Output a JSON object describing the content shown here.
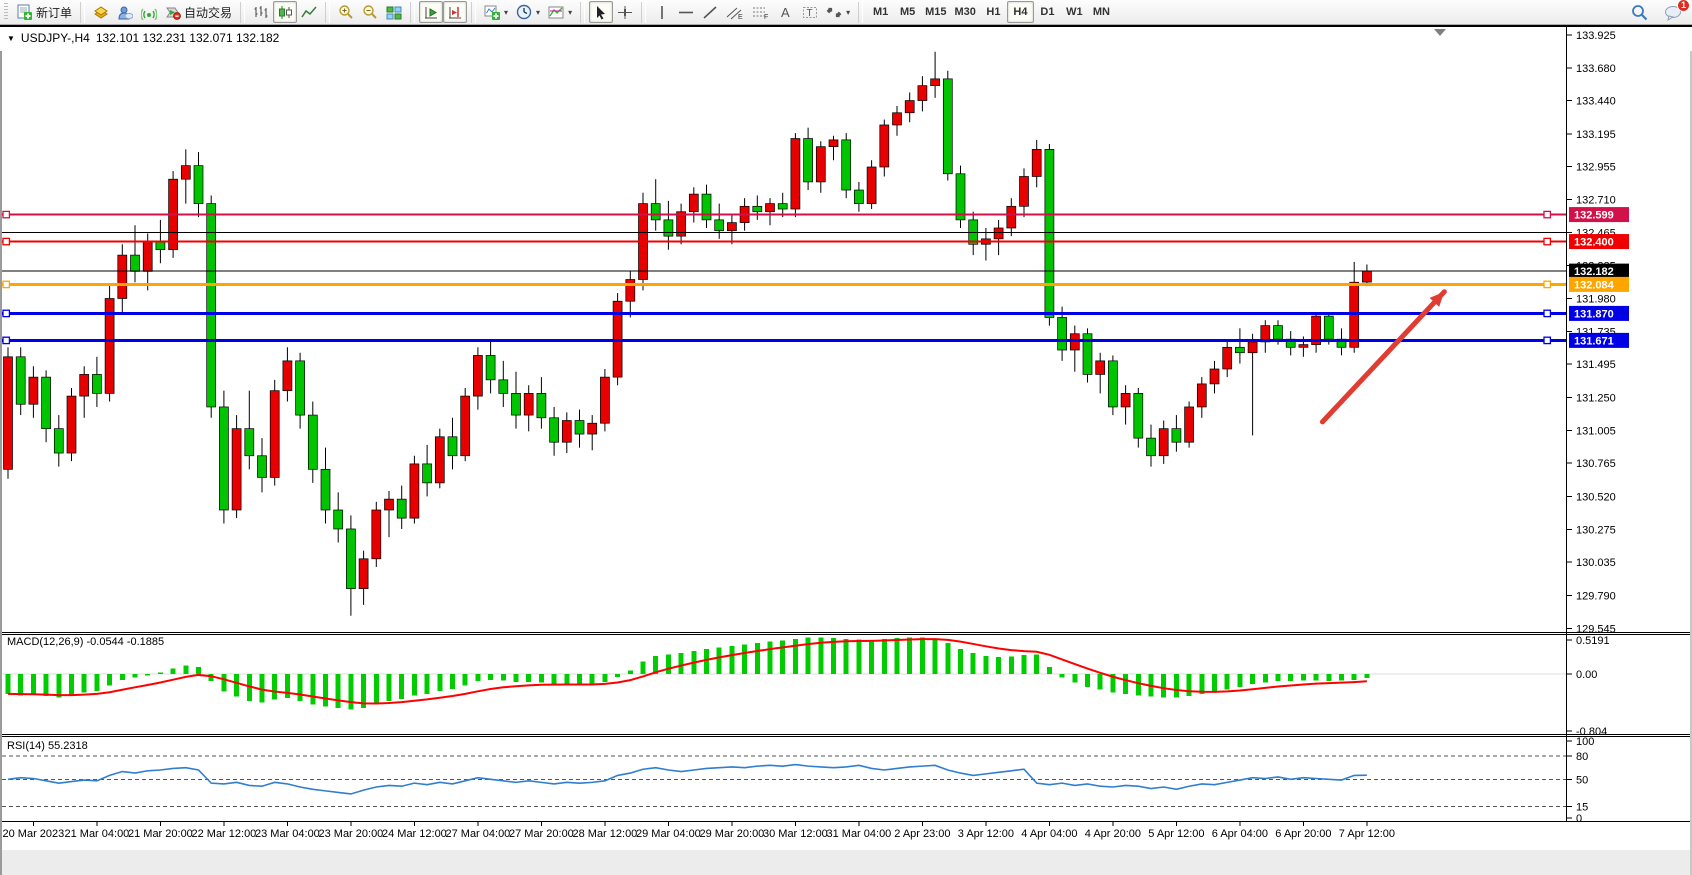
{
  "toolbar": {
    "groups": [
      {
        "items": [
          {
            "name": "new-order-button",
            "icon": "document-plus-icon",
            "label": "新订单"
          }
        ]
      },
      {
        "items": [
          {
            "name": "market-watch-button",
            "icon": "gold-box-icon"
          },
          {
            "name": "community-button",
            "icon": "user-cloud-icon"
          },
          {
            "name": "signals-button",
            "icon": "signal-icon"
          },
          {
            "name": "autotrading-button",
            "icon": "autotrading-icon",
            "label": "自动交易"
          }
        ]
      },
      {
        "items": [
          {
            "name": "bar-chart-button",
            "icon": "bar-chart-icon"
          },
          {
            "name": "candlestick-chart-button",
            "icon": "candlestick-icon",
            "active": true
          },
          {
            "name": "line-chart-button",
            "icon": "line-chart-icon"
          }
        ]
      },
      {
        "items": [
          {
            "name": "zoom-in-button",
            "icon": "zoom-in-icon"
          },
          {
            "name": "zoom-out-button",
            "icon": "zoom-out-icon"
          },
          {
            "name": "tile-windows-button",
            "icon": "tile-windows-icon"
          }
        ]
      },
      {
        "items": [
          {
            "name": "auto-scroll-button",
            "icon": "auto-scroll-icon",
            "active": true
          },
          {
            "name": "chart-shift-button",
            "icon": "chart-shift-icon",
            "active": true
          }
        ]
      },
      {
        "items": [
          {
            "name": "indicators-button",
            "icon": "indicator-plus-icon",
            "dropdown": true
          },
          {
            "name": "periods-button",
            "icon": "clock-icon",
            "dropdown": true
          },
          {
            "name": "templates-button",
            "icon": "template-chart-icon",
            "dropdown": true
          }
        ]
      },
      {
        "items": [
          {
            "name": "cursor-button",
            "icon": "cursor-icon",
            "active": true
          },
          {
            "name": "crosshair-button",
            "icon": "crosshair-icon"
          }
        ]
      },
      {
        "items": [
          {
            "name": "vertical-line-button",
            "icon": "vertical-line-icon"
          },
          {
            "name": "horizontal-line-button",
            "icon": "horizontal-line-icon"
          },
          {
            "name": "trendline-button",
            "icon": "trendline-icon"
          },
          {
            "name": "equidistant-channel-button",
            "icon": "channel-icon"
          },
          {
            "name": "fibonacci-button",
            "icon": "fibonacci-icon"
          },
          {
            "name": "text-button",
            "icon": "text-a-icon"
          },
          {
            "name": "text-label-button",
            "icon": "text-label-icon"
          },
          {
            "name": "shapes-button",
            "icon": "arrows-shapes-icon",
            "dropdown": true
          }
        ]
      }
    ],
    "timeframes": [
      "M1",
      "M5",
      "M15",
      "M30",
      "H1",
      "H4",
      "D1",
      "W1",
      "MN"
    ],
    "active_timeframe": "H4",
    "right": [
      {
        "name": "search-button",
        "icon": "search-icon"
      },
      {
        "name": "notifications-button",
        "icon": "chat-bubble-icon",
        "badge": "1"
      }
    ]
  },
  "chart": {
    "title": {
      "symbol": "USDJPY-,H4",
      "ohlc": "132.101 132.231 132.071 132.182"
    },
    "macd_label": "MACD(12,26,9)",
    "macd_values": "-0.0544 -0.1885",
    "rsi_label": "RSI(14)",
    "rsi_value": "55.2318"
  },
  "chart_data": {
    "type": "candlestick",
    "title": "USDJPY- H4",
    "bull_color": "#e60000",
    "bear_color": "#00c400",
    "wick_color": "#000000",
    "ylim": [
      129.52,
      133.99
    ],
    "y_ticks": [
      133.925,
      133.68,
      133.44,
      133.195,
      132.955,
      132.71,
      132.465,
      132.225,
      131.98,
      131.735,
      131.495,
      131.25,
      131.005,
      130.765,
      130.52,
      130.275,
      130.035,
      129.79,
      129.545
    ],
    "x_labels": [
      "20 Mar 2023",
      "21 Mar 04:00",
      "21 Mar 20:00",
      "22 Mar 12:00",
      "23 Mar 04:00",
      "23 Mar 20:00",
      "24 Mar 12:00",
      "27 Mar 04:00",
      "27 Mar 20:00",
      "28 Mar 12:00",
      "29 Mar 04:00",
      "29 Mar 20:00",
      "30 Mar 12:00",
      "31 Mar 04:00",
      "2 Apr 23:00",
      "3 Apr 12:00",
      "4 Apr 04:00",
      "4 Apr 20:00",
      "5 Apr 12:00",
      "6 Apr 04:00",
      "6 Apr 20:00",
      "7 Apr 12:00"
    ],
    "x_label_start_index": 2,
    "x_label_every": 5,
    "candles": [
      [
        130.72,
        131.62,
        130.65,
        131.55
      ],
      [
        131.55,
        131.62,
        131.12,
        131.2
      ],
      [
        131.2,
        131.48,
        131.1,
        131.4
      ],
      [
        131.4,
        131.45,
        130.92,
        131.02
      ],
      [
        131.02,
        131.12,
        130.74,
        130.84
      ],
      [
        130.84,
        131.32,
        130.78,
        131.26
      ],
      [
        131.26,
        131.48,
        131.1,
        131.42
      ],
      [
        131.42,
        131.55,
        131.18,
        131.28
      ],
      [
        131.28,
        132.08,
        131.22,
        131.98
      ],
      [
        131.98,
        132.38,
        131.88,
        132.3
      ],
      [
        132.3,
        132.52,
        132.1,
        132.18
      ],
      [
        132.18,
        132.46,
        132.04,
        132.4
      ],
      [
        132.4,
        132.56,
        132.24,
        132.34
      ],
      [
        132.34,
        132.92,
        132.28,
        132.86
      ],
      [
        132.86,
        133.08,
        132.68,
        132.96
      ],
      [
        132.96,
        133.06,
        132.58,
        132.68
      ],
      [
        132.68,
        132.74,
        131.1,
        131.18
      ],
      [
        131.18,
        131.3,
        130.32,
        130.42
      ],
      [
        130.42,
        131.12,
        130.36,
        131.02
      ],
      [
        131.02,
        131.3,
        130.72,
        130.82
      ],
      [
        130.82,
        130.95,
        130.55,
        130.66
      ],
      [
        130.66,
        131.38,
        130.6,
        131.3
      ],
      [
        131.3,
        131.62,
        131.22,
        131.52
      ],
      [
        131.52,
        131.58,
        131.02,
        131.12
      ],
      [
        131.12,
        131.22,
        130.62,
        130.72
      ],
      [
        130.72,
        130.88,
        130.32,
        130.42
      ],
      [
        130.42,
        130.55,
        130.18,
        130.28
      ],
      [
        130.28,
        130.38,
        129.64,
        129.84
      ],
      [
        129.84,
        130.12,
        129.72,
        130.06
      ],
      [
        130.06,
        130.48,
        130.0,
        130.42
      ],
      [
        130.42,
        130.56,
        130.22,
        130.5
      ],
      [
        130.5,
        130.6,
        130.28,
        130.36
      ],
      [
        130.36,
        130.82,
        130.32,
        130.76
      ],
      [
        130.76,
        130.9,
        130.52,
        130.62
      ],
      [
        130.62,
        131.02,
        130.58,
        130.96
      ],
      [
        130.96,
        131.1,
        130.72,
        130.82
      ],
      [
        130.82,
        131.32,
        130.78,
        131.26
      ],
      [
        131.26,
        131.62,
        131.16,
        131.56
      ],
      [
        131.56,
        131.66,
        131.28,
        131.38
      ],
      [
        131.38,
        131.52,
        131.18,
        131.28
      ],
      [
        131.28,
        131.44,
        131.02,
        131.12
      ],
      [
        131.12,
        131.34,
        131.0,
        131.28
      ],
      [
        131.28,
        131.4,
        131.02,
        131.1
      ],
      [
        131.1,
        131.18,
        130.82,
        130.92
      ],
      [
        130.92,
        131.14,
        130.84,
        131.08
      ],
      [
        131.08,
        131.16,
        130.88,
        130.98
      ],
      [
        130.98,
        131.12,
        130.86,
        131.06
      ],
      [
        131.06,
        131.46,
        131.0,
        131.4
      ],
      [
        131.4,
        132.02,
        131.34,
        131.96
      ],
      [
        131.96,
        132.18,
        131.84,
        132.12
      ],
      [
        132.12,
        132.76,
        132.04,
        132.68
      ],
      [
        132.68,
        132.86,
        132.48,
        132.56
      ],
      [
        132.56,
        132.7,
        132.34,
        132.44
      ],
      [
        132.44,
        132.68,
        132.38,
        132.62
      ],
      [
        132.62,
        132.8,
        132.54,
        132.75
      ],
      [
        132.75,
        132.82,
        132.5,
        132.56
      ],
      [
        132.56,
        132.68,
        132.42,
        132.48
      ],
      [
        132.48,
        132.6,
        132.38,
        132.54
      ],
      [
        132.54,
        132.72,
        132.48,
        132.66
      ],
      [
        132.66,
        132.74,
        132.56,
        132.62
      ],
      [
        132.62,
        132.72,
        132.52,
        132.68
      ],
      [
        132.68,
        132.76,
        132.58,
        132.64
      ],
      [
        132.64,
        133.2,
        132.58,
        133.16
      ],
      [
        133.16,
        133.24,
        132.78,
        132.84
      ],
      [
        132.84,
        133.14,
        132.76,
        133.1
      ],
      [
        133.1,
        133.18,
        133.0,
        133.15
      ],
      [
        133.15,
        133.2,
        132.72,
        132.78
      ],
      [
        132.78,
        132.84,
        132.62,
        132.68
      ],
      [
        132.68,
        133.0,
        132.64,
        132.95
      ],
      [
        132.95,
        133.3,
        132.88,
        133.26
      ],
      [
        133.26,
        133.4,
        133.18,
        133.35
      ],
      [
        133.35,
        133.5,
        133.28,
        133.44
      ],
      [
        133.44,
        133.62,
        133.36,
        133.55
      ],
      [
        133.55,
        133.8,
        133.46,
        133.6
      ],
      [
        133.6,
        133.66,
        132.85,
        132.9
      ],
      [
        132.9,
        132.96,
        132.5,
        132.56
      ],
      [
        132.56,
        132.62,
        132.3,
        132.38
      ],
      [
        132.38,
        132.5,
        132.26,
        132.42
      ],
      [
        132.42,
        132.56,
        132.3,
        132.5
      ],
      [
        132.5,
        132.72,
        132.44,
        132.66
      ],
      [
        132.66,
        132.94,
        132.58,
        132.88
      ],
      [
        132.88,
        133.15,
        132.8,
        133.08
      ],
      [
        133.08,
        133.12,
        131.78,
        131.84
      ],
      [
        131.84,
        131.92,
        131.52,
        131.6
      ],
      [
        131.6,
        131.78,
        131.44,
        131.72
      ],
      [
        131.72,
        131.76,
        131.36,
        131.42
      ],
      [
        131.42,
        131.58,
        131.28,
        131.52
      ],
      [
        131.52,
        131.56,
        131.12,
        131.18
      ],
      [
        131.18,
        131.34,
        131.05,
        131.28
      ],
      [
        131.28,
        131.32,
        130.88,
        130.95
      ],
      [
        130.95,
        131.05,
        130.74,
        130.82
      ],
      [
        130.82,
        131.08,
        130.76,
        131.02
      ],
      [
        131.02,
        131.12,
        130.85,
        130.92
      ],
      [
        130.92,
        131.22,
        130.88,
        131.18
      ],
      [
        131.18,
        131.4,
        131.1,
        131.35
      ],
      [
        131.35,
        131.52,
        131.28,
        131.46
      ],
      [
        131.46,
        131.68,
        131.4,
        131.62
      ],
      [
        131.62,
        131.76,
        131.5,
        131.58
      ],
      [
        131.58,
        131.72,
        130.97,
        131.66
      ],
      [
        131.66,
        131.82,
        131.58,
        131.78
      ],
      [
        131.78,
        131.82,
        131.64,
        131.68
      ],
      [
        131.68,
        131.74,
        131.56,
        131.62
      ],
      [
        131.62,
        131.7,
        131.55,
        131.64
      ],
      [
        131.64,
        131.88,
        131.58,
        131.85
      ],
      [
        131.85,
        131.88,
        131.64,
        131.68
      ],
      [
        131.68,
        131.76,
        131.56,
        131.62
      ],
      [
        131.62,
        132.25,
        131.58,
        132.1
      ],
      [
        132.101,
        132.231,
        132.071,
        132.182
      ]
    ],
    "hlines": [
      {
        "price": 132.599,
        "color": "#d2114a",
        "badge": "132.599",
        "handles": true,
        "width": 2
      },
      {
        "price": 132.465,
        "color": "#000000",
        "badge": null,
        "handles": false,
        "width": 1
      },
      {
        "price": 132.4,
        "color": "#f00000",
        "badge": "132.400",
        "handles": true,
        "width": 2
      },
      {
        "price": 132.182,
        "color": "#000000",
        "badge": "132.182",
        "handles": false,
        "width": 1
      },
      {
        "price": 132.084,
        "color": "#ffa500",
        "badge": "132.084",
        "handles": true,
        "width": 3
      },
      {
        "price": 131.87,
        "color": "#0000e6",
        "badge": "131.870",
        "handles": true,
        "width": 3
      },
      {
        "price": 131.671,
        "color": "#0000e6",
        "badge": "131.671",
        "handles": true,
        "width": 3
      }
    ],
    "arrow": {
      "from": {
        "index": 103.5,
        "price": 131.07
      },
      "to": {
        "index": 113.1,
        "price": 132.03
      },
      "color": "#e03c31"
    },
    "macd": {
      "label": "MACD(12,26,9)",
      "main": -0.0544,
      "signal": -0.1885,
      "ylim": [
        -0.85,
        0.57
      ],
      "y_ticks": [
        0.5191,
        0.0,
        -0.804
      ],
      "hist_color": "#00cc00",
      "signal_color": "#ff0000",
      "histogram": [
        -0.28,
        -0.3,
        -0.29,
        -0.31,
        -0.33,
        -0.3,
        -0.26,
        -0.24,
        -0.16,
        -0.08,
        -0.05,
        -0.02,
        0.02,
        0.08,
        0.12,
        0.1,
        -0.1,
        -0.25,
        -0.32,
        -0.38,
        -0.4,
        -0.36,
        -0.34,
        -0.38,
        -0.43,
        -0.46,
        -0.48,
        -0.5,
        -0.48,
        -0.43,
        -0.38,
        -0.35,
        -0.3,
        -0.28,
        -0.24,
        -0.21,
        -0.16,
        -0.1,
        -0.08,
        -0.09,
        -0.11,
        -0.11,
        -0.12,
        -0.14,
        -0.14,
        -0.15,
        -0.14,
        -0.11,
        -0.04,
        0.05,
        0.18,
        0.26,
        0.28,
        0.3,
        0.33,
        0.36,
        0.38,
        0.4,
        0.42,
        0.44,
        0.46,
        0.48,
        0.5,
        0.52,
        0.52,
        0.51,
        0.5,
        0.49,
        0.48,
        0.5,
        0.51,
        0.52,
        0.52,
        0.5,
        0.44,
        0.36,
        0.3,
        0.26,
        0.24,
        0.25,
        0.27,
        0.28,
        0.1,
        -0.05,
        -0.12,
        -0.18,
        -0.22,
        -0.26,
        -0.28,
        -0.3,
        -0.32,
        -0.33,
        -0.33,
        -0.31,
        -0.28,
        -0.26,
        -0.22,
        -0.18,
        -0.14,
        -0.12,
        -0.1,
        -0.1,
        -0.09,
        -0.09,
        -0.1,
        -0.09,
        -0.08,
        -0.0544
      ]
    },
    "rsi": {
      "label": "RSI(14)",
      "current": 55.2318,
      "ylim": [
        -4,
        106
      ],
      "y_ticks": [
        100,
        80,
        50,
        15,
        0
      ],
      "levels": [
        80,
        50,
        15
      ],
      "line_color": "#2f7ed0",
      "values": [
        50,
        52,
        51,
        48,
        45,
        47,
        49,
        48,
        55,
        60,
        58,
        61,
        62,
        64,
        65,
        62,
        45,
        44,
        46,
        42,
        41,
        46,
        44,
        40,
        37,
        35,
        33,
        31,
        36,
        40,
        42,
        41,
        45,
        43,
        46,
        44,
        48,
        52,
        50,
        48,
        46,
        48,
        46,
        44,
        46,
        45,
        46,
        48,
        55,
        58,
        63,
        65,
        62,
        60,
        62,
        64,
        65,
        66,
        65,
        67,
        68,
        67,
        69,
        67,
        66,
        65,
        66,
        68,
        64,
        62,
        64,
        66,
        67,
        68,
        62,
        58,
        55,
        57,
        59,
        61,
        63,
        45,
        43,
        45,
        42,
        44,
        41,
        40,
        42,
        41,
        38,
        40,
        37,
        41,
        44,
        43,
        46,
        49,
        52,
        51,
        53,
        50,
        52,
        51,
        50,
        49,
        55,
        55.23
      ]
    }
  }
}
